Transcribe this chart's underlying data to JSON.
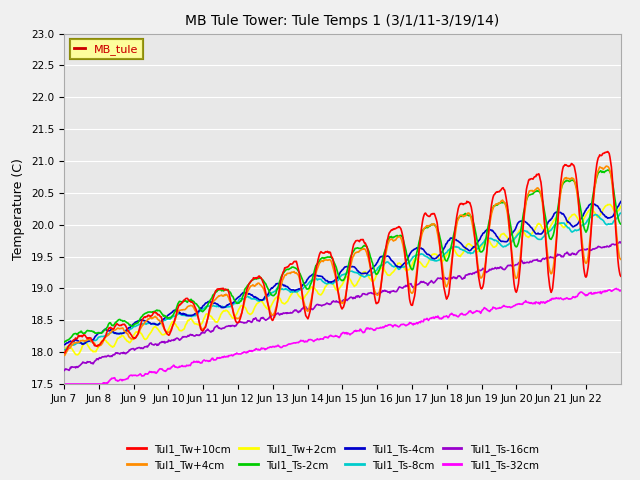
{
  "title": "MB Tule Tower: Tule Temps 1 (3/1/11-3/19/14)",
  "ylabel": "Temperature (C)",
  "ylim": [
    17.5,
    23.0
  ],
  "yticks": [
    17.5,
    18.0,
    18.5,
    19.0,
    19.5,
    20.0,
    20.5,
    21.0,
    21.5,
    22.0,
    22.5,
    23.0
  ],
  "xlabel_ticks": [
    "Jun 7",
    "Jun 8",
    "Jun 9",
    "Jun 10",
    "Jun 11",
    "Jun 12",
    "Jun 13",
    "Jun 14",
    "Jun 15",
    "Jun 16",
    "Jun 17",
    "Jun 18",
    "Jun 19",
    "Jun 20",
    "Jun 21",
    "Jun 22"
  ],
  "series": [
    {
      "label": "Tul1_Tw+10cm",
      "color": "#FF0000"
    },
    {
      "label": "Tul1_Tw+4cm",
      "color": "#FF8C00"
    },
    {
      "label": "Tul1_Tw+2cm",
      "color": "#FFFF00"
    },
    {
      "label": "Tul1_Ts-2cm",
      "color": "#00CC00"
    },
    {
      "label": "Tul1_Ts-4cm",
      "color": "#0000CC"
    },
    {
      "label": "Tul1_Ts-8cm",
      "color": "#00CCCC"
    },
    {
      "label": "Tul1_Ts-16cm",
      "color": "#9900CC"
    },
    {
      "label": "Tul1_Ts-32cm",
      "color": "#FF00FF"
    }
  ],
  "legend_label": "MB_tule",
  "legend_color": "#CC0000",
  "background_color": "#f0f0f0",
  "plot_bg_color": "#e8e8e8",
  "grid_color": "#ffffff"
}
